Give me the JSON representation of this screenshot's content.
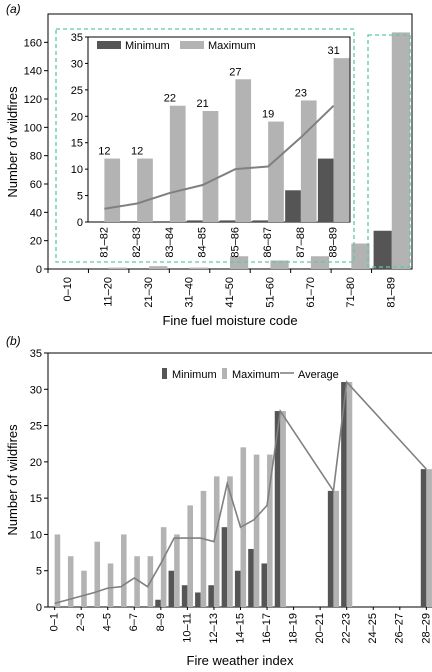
{
  "chart_data": [
    {
      "panel_label": "(a)",
      "type": "bar",
      "xlabel": "Fine fuel moisture code",
      "ylabel": "Number of wildfires",
      "ylim": [
        0,
        180
      ],
      "yticks": [
        0,
        20,
        40,
        60,
        80,
        100,
        120,
        140,
        160
      ],
      "categories": [
        "0–10",
        "11–20",
        "21–30",
        "31–40",
        "41–50",
        "51–60",
        "61–70",
        "71–80",
        "81–89"
      ],
      "legend_position": "top-left (inset)",
      "series": [
        {
          "name": "Minimum",
          "color": "#555555",
          "values": [
            0,
            0,
            0,
            0,
            0,
            0,
            0,
            0,
            27
          ]
        },
        {
          "name": "Maximum",
          "color": "#b3b3b3",
          "values": [
            0,
            1,
            2,
            1,
            9,
            6,
            9,
            18,
            167
          ]
        }
      ],
      "inset": {
        "categories": [
          "81–82",
          "82–83",
          "83–84",
          "84–85",
          "85–86",
          "86–87",
          "87–88",
          "88–89"
        ],
        "ylim": [
          0,
          35
        ],
        "yticks": [
          0,
          5,
          10,
          15,
          20,
          25,
          30,
          35
        ],
        "series": [
          {
            "name": "Minimum",
            "color": "#555555",
            "values": [
              0,
              0,
              0,
              0.3,
              0.3,
              0.3,
              6,
              12
            ]
          },
          {
            "name": "Maximum",
            "color": "#b3b3b3",
            "values": [
              12,
              12,
              22,
              21,
              27,
              19,
              23,
              31
            ]
          },
          {
            "name": "",
            "type": "line",
            "color": "#808080",
            "values": [
              2.5,
              3.5,
              5.5,
              7,
              10,
              10.5,
              16,
              22
            ]
          }
        ],
        "data_labels": [
          12,
          12,
          22,
          21,
          27,
          19,
          23,
          31
        ]
      },
      "highlight_color": "#5ec9a0"
    },
    {
      "panel_label": "(b)",
      "type": "bar",
      "xlabel": "Fire weather index",
      "ylabel": "Number of wildfires",
      "ylim": [
        0,
        35
      ],
      "yticks": [
        0,
        5,
        10,
        15,
        20,
        25,
        30,
        35
      ],
      "categories": [
        "0–1",
        "1–2",
        "2–3",
        "3–4",
        "4–5",
        "5–6",
        "6–7",
        "7–8",
        "8–9",
        "9–10",
        "10–11",
        "11–12",
        "12–13",
        "13–14",
        "14–15",
        "15–16",
        "16–17",
        "17–18",
        "18–19",
        "19–20",
        "20–21",
        "21–22",
        "22–23",
        "23–24",
        "24–25",
        "25–26",
        "26–27",
        "27–28",
        "28–29"
      ],
      "tick_labels_shown": [
        "0–1",
        "2–3",
        "4–5",
        "6–7",
        "8–9",
        "10–11",
        "12–13",
        "14–15",
        "16–17",
        "18–19",
        "20–21",
        "22–23",
        "24–25",
        "26–27",
        "28–29"
      ],
      "legend_position": "top-center",
      "series": [
        {
          "name": "Minimum",
          "color": "#555555",
          "values": [
            0,
            0,
            0,
            0,
            0,
            0,
            0,
            0,
            1,
            5,
            3,
            2,
            3,
            11,
            5,
            8,
            6,
            27,
            0,
            0,
            0,
            16,
            31,
            0,
            0,
            0,
            0,
            0,
            19
          ]
        },
        {
          "name": "Maximum",
          "color": "#b3b3b3",
          "values": [
            10,
            7,
            5,
            9,
            6,
            10,
            7,
            7,
            11,
            10,
            14,
            16,
            18,
            18,
            22,
            21,
            21,
            27,
            0,
            0,
            0,
            16,
            31,
            0,
            0,
            0,
            0,
            0,
            19
          ]
        },
        {
          "name": "Average",
          "type": "line",
          "color": "#808080",
          "values": [
            0.5,
            1,
            1.5,
            2,
            2.6,
            2.8,
            4,
            2.8,
            6,
            9.5,
            9.5,
            9.5,
            9,
            17,
            11,
            12,
            14,
            27,
            null,
            null,
            null,
            16,
            31,
            null,
            null,
            null,
            null,
            null,
            19
          ]
        }
      ]
    }
  ]
}
